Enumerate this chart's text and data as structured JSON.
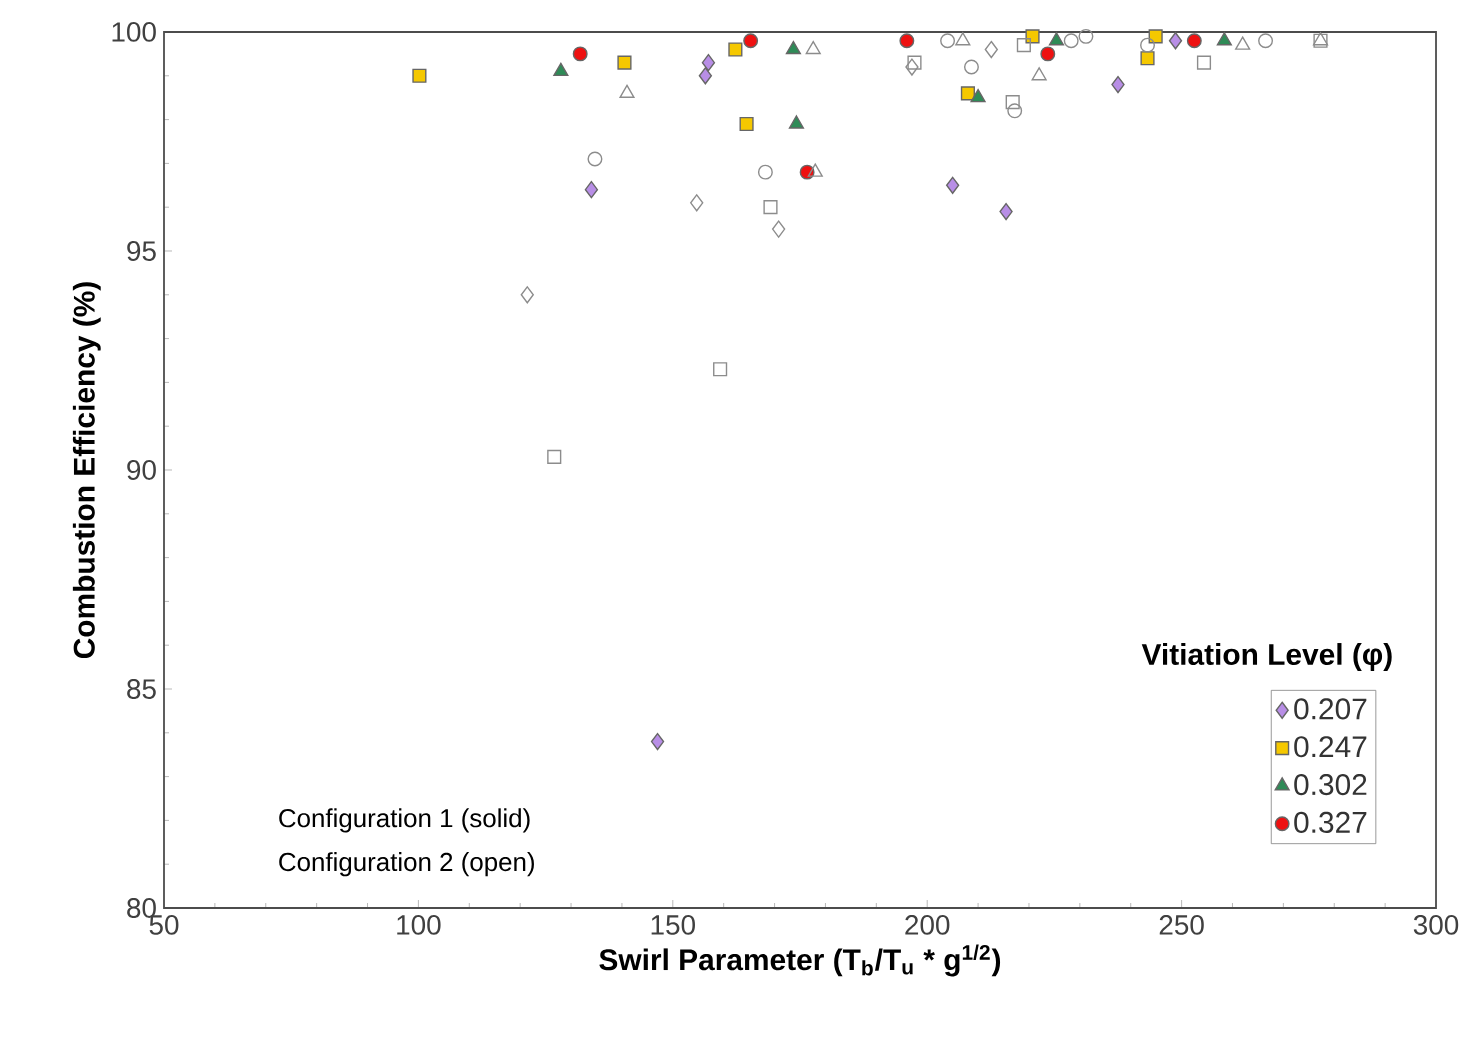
{
  "chart_data": {
    "type": "scatter",
    "xlabel": "Swirl Parameter (T$_{b}$/T$_{u}$ * g$^{1/2}$)",
    "ylabel": "Combustion Efficiency (%)",
    "legend_title": "Vitiation Level (φ)",
    "legend": "bottom right",
    "xlim": [
      50,
      300
    ],
    "xticks": [
      50,
      100,
      150,
      200,
      250,
      300
    ],
    "ylim": [
      80,
      100
    ],
    "yticks": [
      80,
      85,
      90,
      95,
      100
    ],
    "annotations": [
      "Configuration 1 (solid)",
      "Configuration 2 (open)"
    ],
    "series": [
      {
        "name": "0.207",
        "color": "#b88ee6",
        "marker": "diamond",
        "x": [
          134,
          157,
          156.4,
          205,
          215.5,
          237.5,
          248.8,
          147
        ],
        "values": [
          96.4,
          99.3,
          99.0,
          96.5,
          95.9,
          98.8,
          99.8,
          83.8
        ]
      },
      {
        "name": "0.247",
        "color": "#f5c800",
        "marker": "square",
        "x": [
          100.2,
          140.5,
          162.3,
          164.5,
          208,
          220.7,
          243.3,
          244.9
        ],
        "values": [
          99.0,
          99.3,
          99.6,
          97.9,
          98.6,
          99.9,
          99.4,
          99.9
        ]
      },
      {
        "name": "0.302",
        "color": "#2e8b57",
        "marker": "triangle",
        "x": [
          128,
          173.7,
          174.3,
          210,
          225.4,
          258.4
        ],
        "values": [
          99.1,
          99.6,
          97.9,
          98.5,
          99.8,
          99.8
        ]
      },
      {
        "name": "0.327",
        "color": "#ee1111",
        "marker": "circle",
        "x": [
          131.8,
          165.3,
          176.4,
          196,
          223.7,
          252.5
        ],
        "values": [
          99.5,
          99.8,
          96.8,
          99.8,
          99.5,
          99.8
        ]
      },
      {
        "color": "#8c8c8c",
        "marker": "diamond",
        "x": [
          121.4,
          154.7,
          170.8,
          197,
          212.6
        ],
        "values": [
          94.0,
          96.1,
          95.5,
          99.2,
          99.6
        ]
      },
      {
        "color": "#8c8c8c",
        "marker": "square",
        "x": [
          126.7,
          159.3,
          169.2,
          197.5,
          216.8,
          219,
          254.4,
          277.3
        ],
        "values": [
          90.3,
          92.3,
          96.0,
          99.3,
          98.4,
          99.7,
          99.3,
          99.8
        ]
      },
      {
        "color": "#8c8c8c",
        "marker": "triangle",
        "x": [
          141,
          177.6,
          178,
          207,
          222,
          262,
          277.3
        ],
        "values": [
          98.6,
          99.6,
          96.8,
          99.8,
          99.0,
          99.7,
          99.8
        ]
      },
      {
        "color": "#8c8c8c",
        "marker": "circle",
        "x": [
          134.7,
          168.2,
          204,
          208.7,
          217.2,
          228.3,
          231.2,
          243.3,
          266.5
        ],
        "values": [
          97.1,
          96.8,
          99.8,
          99.2,
          98.2,
          99.8,
          99.9,
          99.7,
          99.8
        ]
      }
    ]
  }
}
